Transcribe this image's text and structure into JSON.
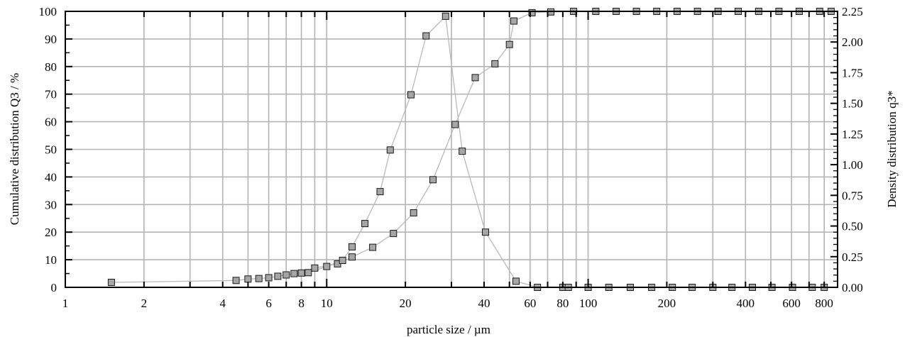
{
  "colors": {
    "grid": "#b4b4b4",
    "curve": "#b9b9b9",
    "marker_fill": "#a6a6a6",
    "marker_stroke": "#1a1a1a",
    "frame": "#000000"
  },
  "chart_data": {
    "type": "scatter",
    "xlabel": "particle size / µm",
    "ylabel_left": "Cumulative distribution Q3 / %",
    "ylabel_right": "Density distribution q3*",
    "x_scale": "log",
    "xlim": [
      1,
      900
    ],
    "ylim_left": [
      0,
      100
    ],
    "ylim_right": [
      0,
      2.25
    ],
    "grid": true,
    "legend": "none",
    "x_ticks": [
      1,
      2,
      4,
      6,
      8,
      10,
      20,
      40,
      60,
      80,
      100,
      200,
      400,
      600,
      800
    ],
    "x_tick_labels": [
      "1",
      "2",
      "4",
      "6",
      "8",
      "10",
      "20",
      "40",
      "60",
      "80",
      "100",
      "200",
      "400",
      "600",
      "800"
    ],
    "y_left_ticks": [
      0,
      10,
      20,
      30,
      40,
      50,
      60,
      70,
      80,
      90,
      100
    ],
    "y_left_tick_labels": [
      "0",
      "10",
      "20",
      "30",
      "40",
      "50",
      "60",
      "70",
      "80",
      "90",
      "100"
    ],
    "y_right_ticks": [
      0,
      0.25,
      0.5,
      0.75,
      1.0,
      1.25,
      1.5,
      1.75,
      2.0,
      2.25
    ],
    "y_right_tick_labels": [
      "0.00",
      "0.25",
      "0.50",
      "0.75",
      "1.00",
      "1.25",
      "1.50",
      "1.75",
      "2.00",
      "2.25"
    ],
    "series": [
      {
        "axis": "left",
        "x": [
          1.5,
          4.5,
          5.0,
          5.5,
          6.0,
          6.5,
          7.0,
          7.5,
          8.0,
          9.0,
          11,
          12.5,
          15,
          18,
          21.5,
          25.5,
          31,
          37,
          44,
          50,
          52,
          61,
          72,
          88,
          107,
          128,
          153,
          183,
          219,
          262,
          314,
          375,
          449,
          537,
          642,
          769,
          850
        ],
        "y": [
          1.8,
          2.5,
          3,
          3.2,
          3.5,
          4,
          4.5,
          5,
          5.2,
          7,
          8.5,
          11,
          14.5,
          19.5,
          27,
          39,
          59,
          76,
          81,
          88,
          96.5,
          99.5,
          99.8,
          100,
          100,
          100,
          100,
          100,
          100,
          100,
          100,
          100,
          100,
          100,
          100,
          100,
          100
        ]
      },
      {
        "axis": "right",
        "x": [
          8.5,
          10,
          11.5,
          12.5,
          14,
          16,
          17.5,
          21,
          24,
          28.5,
          33,
          40.5,
          53,
          64,
          80,
          84,
          100,
          120,
          145,
          175,
          210,
          250,
          300,
          355,
          425,
          505,
          605,
          720,
          800
        ],
        "y": [
          0.12,
          0.17,
          0.22,
          0.33,
          0.52,
          0.78,
          1.12,
          1.57,
          2.05,
          2.21,
          1.11,
          0.45,
          0.05,
          0,
          0,
          0,
          0,
          0,
          0,
          0,
          0,
          0,
          0,
          0,
          0,
          0,
          0,
          0,
          0
        ]
      }
    ]
  }
}
